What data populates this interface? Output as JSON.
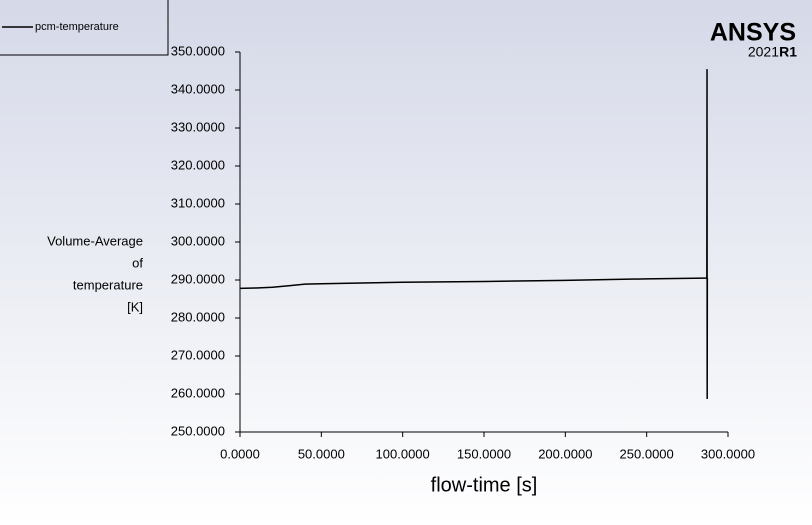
{
  "chart_data": {
    "type": "line",
    "x_label": "flow-time [s]",
    "y_label": [
      "Volume-Average",
      "of",
      "temperature",
      "[K]"
    ],
    "x": [
      0,
      10,
      20,
      30,
      40,
      50,
      75,
      100,
      150,
      200,
      250,
      285,
      287,
      287.1,
      287.2,
      287.3
    ],
    "series": [
      {
        "name": "pcm-temperature",
        "color": "#000000",
        "values": [
          287.8,
          287.9,
          288.1,
          288.5,
          288.9,
          289.0,
          289.2,
          289.4,
          289.6,
          289.9,
          290.3,
          290.5,
          290.5,
          345.5,
          258.7,
          290.5
        ]
      }
    ],
    "xlim": [
      0,
      300
    ],
    "xticks": [
      {
        "value": 0,
        "label": "0.0000"
      },
      {
        "value": 50,
        "label": "50.0000"
      },
      {
        "value": 100,
        "label": "100.0000"
      },
      {
        "value": 150,
        "label": "150.0000"
      },
      {
        "value": 200,
        "label": "200.0000"
      },
      {
        "value": 250,
        "label": "250.0000"
      },
      {
        "value": 300,
        "label": "300.0000"
      }
    ],
    "ylim": [
      250,
      350
    ],
    "yticks": [
      {
        "value": 250,
        "label": "250.0000"
      },
      {
        "value": 260,
        "label": "260.0000"
      },
      {
        "value": 270,
        "label": "270.0000"
      },
      {
        "value": 280,
        "label": "280.0000"
      },
      {
        "value": 290,
        "label": "290.0000"
      },
      {
        "value": 300,
        "label": "300.0000"
      },
      {
        "value": 310,
        "label": "310.0000"
      },
      {
        "value": 320,
        "label": "320.0000"
      },
      {
        "value": 330,
        "label": "330.0000"
      },
      {
        "value": 340,
        "label": "340.0000"
      },
      {
        "value": 350,
        "label": "350.0000"
      }
    ],
    "legend": "top-left"
  },
  "logo": {
    "brand": "ANSYS",
    "version": "2021",
    "release": "R1"
  }
}
